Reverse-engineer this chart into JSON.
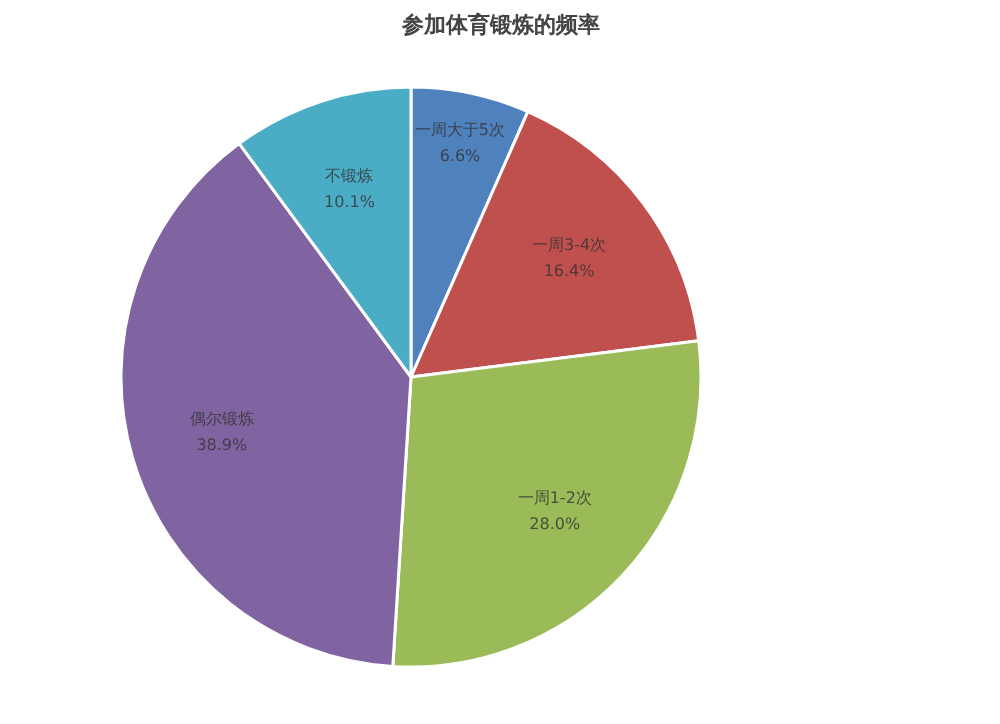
{
  "chart_data": {
    "type": "pie",
    "title": "参加体育锻炼的频率",
    "categories": [
      "一周大于5次",
      "一周3-4次",
      "一周1-2次",
      "偶尔锻炼",
      "不锻炼"
    ],
    "values": [
      6.6,
      16.4,
      28.0,
      38.9,
      10.1
    ],
    "colors": [
      "#4f81bd",
      "#c0504d",
      "#9bbb59",
      "#8064a2",
      "#4bacc6"
    ],
    "value_labels": [
      "6.6%",
      "16.4%",
      "28.0%",
      "38.9%",
      "10.1%"
    ],
    "legend": false
  }
}
